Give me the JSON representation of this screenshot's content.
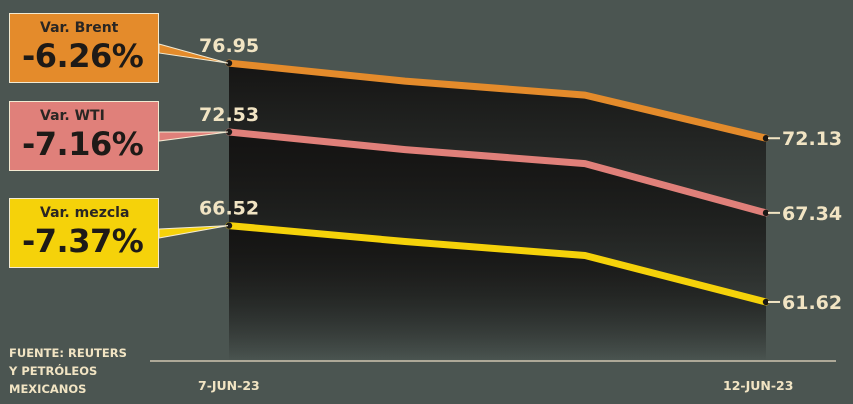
{
  "boxes": [
    {
      "label": "Var. Brent",
      "value": "-6.26%",
      "color": "#e48b2b"
    },
    {
      "label": "Var. WTI",
      "value": "-7.16%",
      "color": "#e0807a"
    },
    {
      "label": "Var. mezcla",
      "value": "-7.37%",
      "color": "#f5d20a"
    }
  ],
  "source": {
    "line1": "FUENTE: REUTERS",
    "line2": "Y PETRÓLEOS",
    "line3": "MEXICANOS"
  },
  "chart_data": {
    "type": "line",
    "x_labels": [
      "7-JUN-23",
      "12-JUN-23"
    ],
    "series": [
      {
        "name": "Brent",
        "color": "#e48b2b",
        "values": [
          76.95,
          75.8,
          74.9,
          72.13
        ],
        "start_label": "76.95",
        "end_label": "72.13"
      },
      {
        "name": "WTI",
        "color": "#e0807a",
        "values": [
          72.53,
          71.4,
          70.5,
          67.34
        ],
        "start_label": "72.53",
        "end_label": "67.34"
      },
      {
        "name": "mezcla",
        "color": "#f5d20a",
        "values": [
          66.52,
          65.5,
          64.6,
          61.62
        ],
        "start_label": "66.52",
        "end_label": "61.62"
      }
    ],
    "ylim": [
      59.5,
      78.5
    ],
    "grid": false,
    "legend": "left"
  }
}
